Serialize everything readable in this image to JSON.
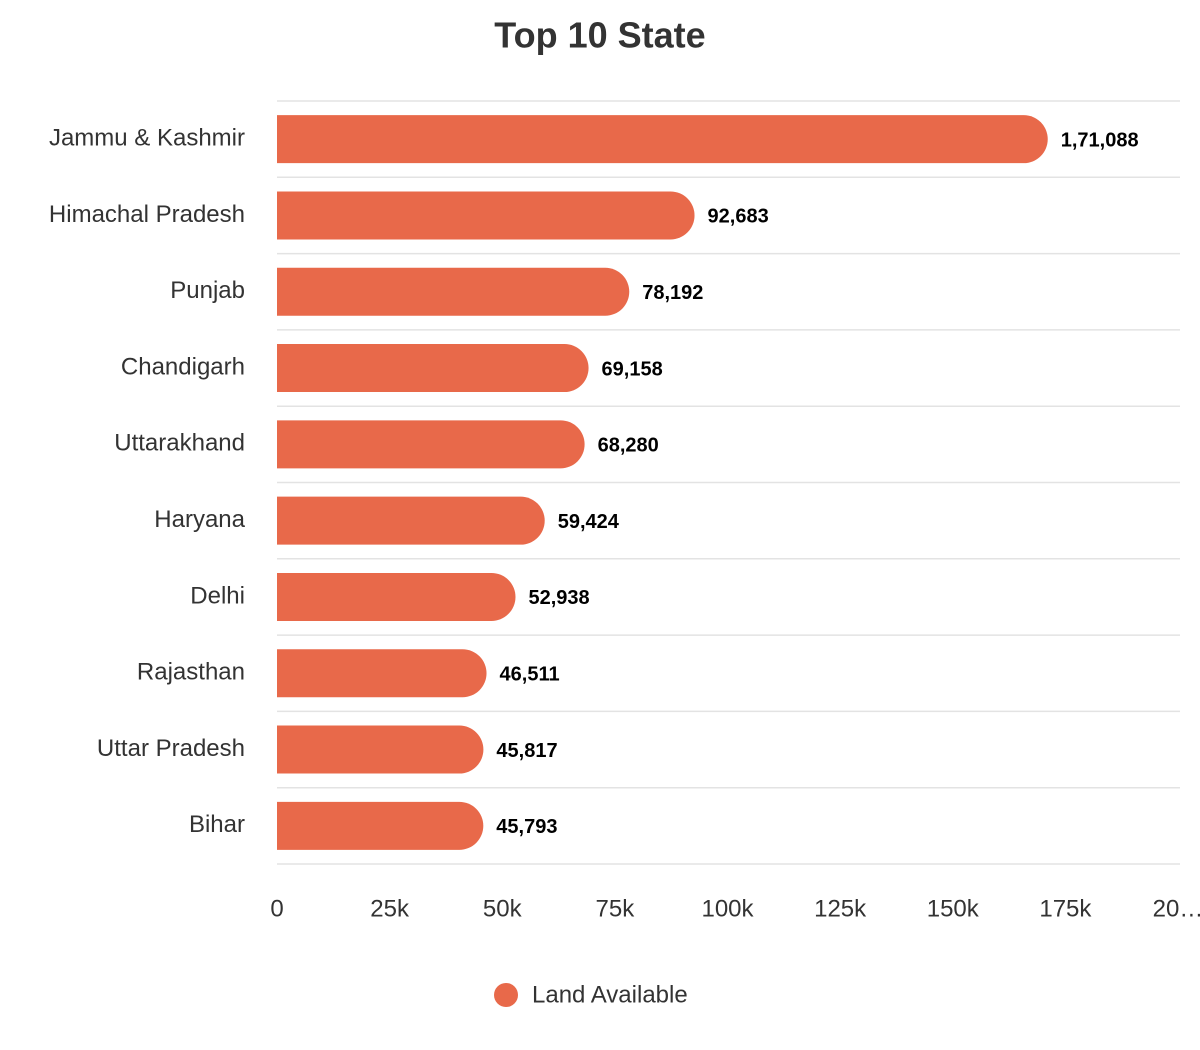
{
  "chart_data": {
    "type": "bar",
    "orientation": "horizontal",
    "title": "Top 10 State",
    "categories": [
      "Jammu & Kashmir",
      "Himachal Pradesh",
      "Punjab",
      "Chandigarh",
      "Uttarakhand",
      "Haryana",
      "Delhi",
      "Rajasthan",
      "Uttar Pradesh",
      "Bihar"
    ],
    "series": [
      {
        "name": "Land Available",
        "color": "#e8694a",
        "values": [
          171088,
          92683,
          78192,
          69158,
          68280,
          59424,
          52938,
          46511,
          45817,
          45793
        ],
        "value_labels": [
          "1,71,088",
          "92,683",
          "78,192",
          "69,158",
          "68,280",
          "59,424",
          "52,938",
          "46,511",
          "45,817",
          "45,793"
        ]
      }
    ],
    "xlim": [
      0,
      200000
    ],
    "xticks": [
      0,
      {
        "value": 25000,
        "label": "25k"
      },
      {
        "value": 50000,
        "label": "50k"
      },
      {
        "value": 75000,
        "label": "75k"
      },
      {
        "value": 100000,
        "label": "100k"
      },
      {
        "value": 125000,
        "label": "125k"
      },
      {
        "value": 150000,
        "label": "150k"
      },
      {
        "value": 175000,
        "label": "175k"
      },
      {
        "value": 200000,
        "label": "20…"
      }
    ],
    "legend": "bottom"
  }
}
